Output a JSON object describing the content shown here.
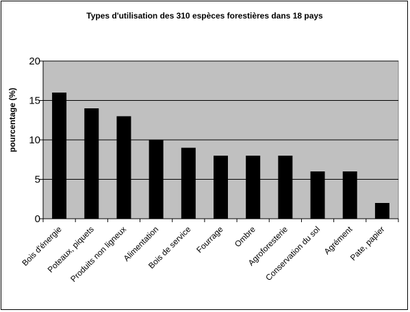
{
  "chart_data": {
    "type": "bar",
    "title": "Types d'utilisation des 310 espèces forestières dans 18 pays",
    "xlabel": "",
    "ylabel": "pourcentage (%)",
    "ylim": [
      0,
      20
    ],
    "yticks": [
      "0",
      "5",
      "10",
      "15",
      "20"
    ],
    "grid": true,
    "legend": "none",
    "categories": [
      "Bois d'énergie",
      "Poteaux, piquets",
      "Produits non ligneux",
      "Alimentation",
      "Bois de service",
      "Fourrage",
      "Ombre",
      "Agroforesterie",
      "Conservation du sol",
      "Agrément",
      "Pate, papier"
    ],
    "values": [
      16,
      14,
      13,
      10,
      9,
      8,
      8,
      8,
      6,
      6,
      2
    ],
    "colors": {
      "plot_background": "#c0c0c0",
      "bar": "#000000",
      "gridline": "#000000"
    }
  }
}
